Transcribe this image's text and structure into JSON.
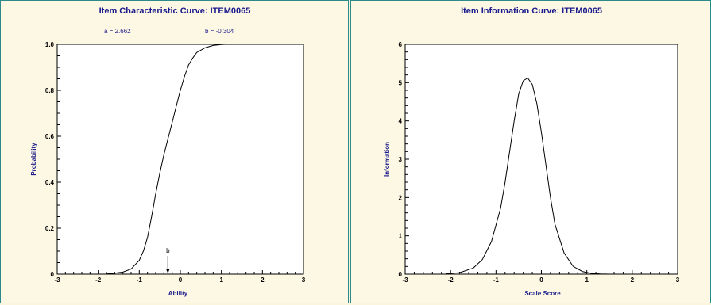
{
  "chart_data": [
    {
      "type": "line",
      "title": "Item Characteristic Curve: ITEM0065",
      "params": {
        "a_label": "a =  2.662",
        "b_label": "b = -0.304"
      },
      "xlabel": "Ability",
      "ylabel": "Probability",
      "xlim": [
        -3,
        3
      ],
      "ylim": [
        0,
        1
      ],
      "x_ticks": [
        "-3",
        "-2",
        "-1",
        "0",
        "1",
        "2",
        "3"
      ],
      "y_ticks": [
        "0",
        "0.2",
        "0.4",
        "0.6",
        "0.8",
        "1.0"
      ],
      "b_marker": {
        "label": "b",
        "x": -0.304
      },
      "series": [
        {
          "x": [
            -1.8,
            -1.6,
            -1.4,
            -1.2,
            -1.0,
            -0.9,
            -0.8,
            -0.7,
            -0.6,
            -0.5,
            -0.4,
            -0.3,
            -0.2,
            -0.1,
            0.0,
            0.1,
            0.2,
            0.3,
            0.4,
            0.6,
            0.8,
            1.0,
            1.1
          ],
          "y": [
            0.001,
            0.004,
            0.009,
            0.022,
            0.06,
            0.1,
            0.16,
            0.25,
            0.35,
            0.44,
            0.52,
            0.59,
            0.66,
            0.73,
            0.8,
            0.86,
            0.91,
            0.94,
            0.965,
            0.985,
            0.995,
            0.999,
            1.0
          ]
        }
      ]
    },
    {
      "type": "line",
      "title": "Item Information Curve: ITEM0065",
      "xlabel": "Scale Score",
      "ylabel": "Information",
      "xlim": [
        -3,
        3
      ],
      "ylim": [
        0,
        6
      ],
      "x_ticks": [
        "-3",
        "-2",
        "-1",
        "0",
        "1",
        "2",
        "3"
      ],
      "y_ticks": [
        "0",
        "1",
        "2",
        "3",
        "4",
        "5",
        "6"
      ],
      "series": [
        {
          "x": [
            -2.1,
            -1.8,
            -1.5,
            -1.3,
            -1.1,
            -0.9,
            -0.8,
            -0.7,
            -0.6,
            -0.5,
            -0.4,
            -0.3,
            -0.2,
            -0.1,
            0.0,
            0.1,
            0.2,
            0.3,
            0.5,
            0.7,
            0.9,
            1.1,
            1.3,
            1.5
          ],
          "y": [
            0.01,
            0.04,
            0.16,
            0.38,
            0.85,
            1.72,
            2.4,
            3.2,
            4.0,
            4.7,
            5.05,
            5.12,
            4.95,
            4.45,
            3.7,
            2.85,
            2.0,
            1.3,
            0.55,
            0.2,
            0.07,
            0.02,
            0.006,
            0.0
          ]
        }
      ]
    }
  ]
}
